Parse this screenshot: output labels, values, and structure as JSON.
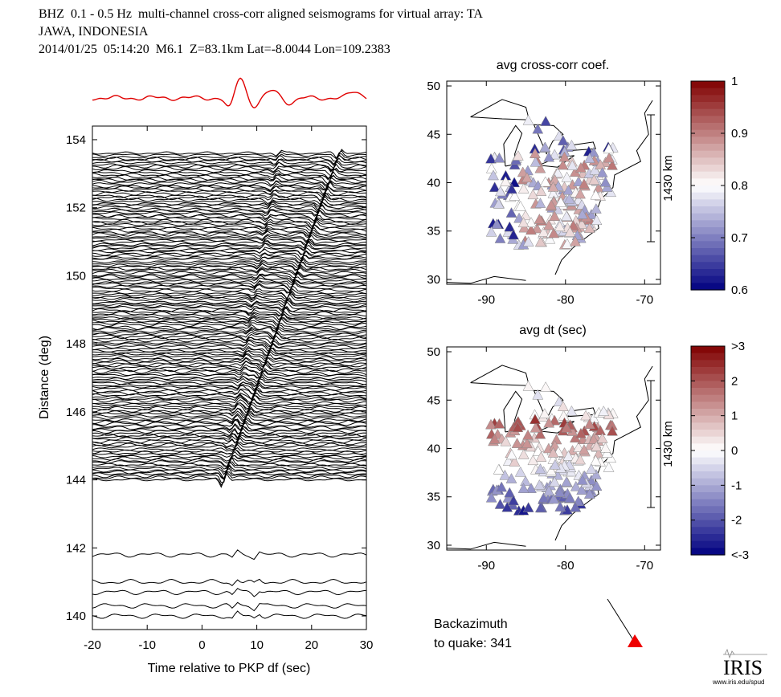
{
  "header": {
    "line1": "BHZ  0.1 - 0.5 Hz  multi-channel cross-corr aligned seismograms for virtual array: TA",
    "line2": "JAWA, INDONESIA",
    "line3": "2014/01/25  05:14:20  M6.1  Z=83.1km Lat=-8.0044 Lon=109.2383"
  },
  "colors": {
    "stack_trace": "#e00000",
    "traces": "#000000",
    "backazimuth_marker": "#ee0000"
  },
  "chart_data": [
    {
      "type": "line",
      "title": "",
      "xlabel": "Time relative to PKP df (sec)",
      "ylabel": "Distance (deg)",
      "xlim": [
        -20,
        30
      ],
      "ylim": [
        139.6,
        154.4
      ],
      "xticks": [
        "-20",
        "-10",
        "0",
        "10",
        "20",
        "30"
      ],
      "yticks": [
        "140",
        "142",
        "144",
        "146",
        "148",
        "150",
        "152",
        "154"
      ],
      "xtick_values": [
        -20,
        -10,
        0,
        10,
        20,
        30
      ],
      "ytick_values": [
        140,
        142,
        144,
        146,
        148,
        150,
        152,
        154
      ],
      "record_section": {
        "distance_range_dense": [
          144.0,
          153.6
        ],
        "isolated_trace_distances": [
          141.8,
          141.0,
          140.7,
          140.3,
          140.0
        ],
        "first_arrival_time_at_144": 4,
        "first_arrival_time_at_153_6": 25,
        "second_phase_time_at_153_6": 14
      },
      "stack_trace_note": "red summed trace above plot"
    },
    {
      "type": "scatter",
      "title": "avg cross-corr coef.",
      "xlim": [
        -95,
        -68
      ],
      "ylim": [
        29.5,
        50.5
      ],
      "xticks": [
        "-90",
        "-80",
        "-70"
      ],
      "yticks": [
        "30",
        "35",
        "40",
        "45",
        "50"
      ],
      "xtick_values": [
        -90,
        -80,
        -70
      ],
      "ytick_values": [
        30,
        35,
        40,
        45,
        50
      ],
      "scale_bar_label": "1430 km",
      "colorbar": {
        "min": 0.6,
        "max": 1.0,
        "ticks": [
          "1",
          "0.9",
          "0.8",
          "0.7",
          "0.6"
        ],
        "tick_values": [
          1,
          0.9,
          0.8,
          0.7,
          0.6
        ]
      }
    },
    {
      "type": "scatter",
      "title": "avg dt (sec)",
      "xlim": [
        -95,
        -68
      ],
      "ylim": [
        29.5,
        50.5
      ],
      "xticks": [
        "-90",
        "-80",
        "-70"
      ],
      "yticks": [
        "30",
        "35",
        "40",
        "45",
        "50"
      ],
      "xtick_values": [
        -90,
        -80,
        -70
      ],
      "ytick_values": [
        30,
        35,
        40,
        45,
        50
      ],
      "scale_bar_label": "1430 km",
      "colorbar": {
        "min": -3,
        "max": 3,
        "ticks": [
          ">3",
          "2",
          "1",
          "0",
          "-1",
          "-2",
          "<-3"
        ],
        "tick_values": [
          3,
          2,
          1,
          0,
          -1,
          -2,
          -3
        ]
      }
    }
  ],
  "backazimuth": {
    "line1": "Backazimuth",
    "line2": "to quake:  341"
  },
  "logo": {
    "text": "IRIS",
    "url": "www.iris.edu/spud"
  }
}
